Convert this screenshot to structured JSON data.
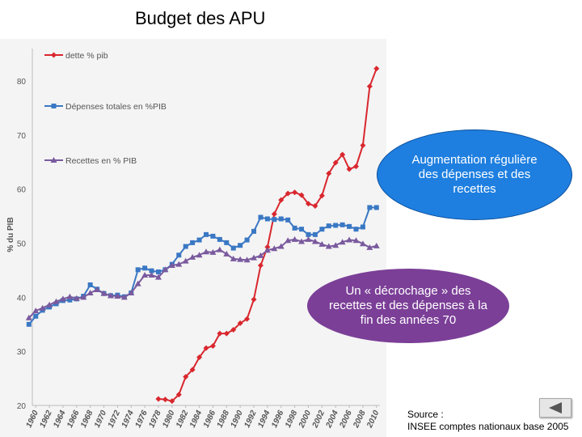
{
  "slide_title": "Budget des APU",
  "chart_data": {
    "type": "line",
    "title": "",
    "ylabel": "% du PIB",
    "xlabel": "",
    "ylim": [
      20,
      86
    ],
    "yticks": [
      20,
      30,
      40,
      50,
      60,
      70,
      80
    ],
    "xlim": [
      1959.5,
      2010.5
    ],
    "x_tick_labels": [
      "1960",
      "1962",
      "1964",
      "1966",
      "1968",
      "1970",
      "1972",
      "1974",
      "1976",
      "1978",
      "1980",
      "1982",
      "1984",
      "1986",
      "1988",
      "1990",
      "1992",
      "1994",
      "1996",
      "1998",
      "2000",
      "2002",
      "2004",
      "2006",
      "2008",
      "2010"
    ],
    "legend": [
      "dette % pib",
      "Dépenses totales en %PIB",
      "Recettes en % PIB"
    ],
    "series": [
      {
        "name": "dette % pib",
        "color": "#d9272e",
        "marker": "diamond",
        "x": [
          1978,
          1979,
          1980,
          1981,
          1982,
          1983,
          1984,
          1985,
          1986,
          1987,
          1988,
          1989,
          1990,
          1991,
          1992,
          1993,
          1994,
          1995,
          1996,
          1997,
          1998,
          1999,
          2000,
          2001,
          2002,
          2003,
          2004,
          2005,
          2006,
          2007,
          2008,
          2009,
          2010
        ],
        "y": [
          21.2,
          21.1,
          20.8,
          22.0,
          25.3,
          26.6,
          28.9,
          30.6,
          31.0,
          33.3,
          33.3,
          34.0,
          35.2,
          36.0,
          39.6,
          45.9,
          49.3,
          55.4,
          58.0,
          59.2,
          59.4,
          58.9,
          57.3,
          56.9,
          58.8,
          62.9,
          64.9,
          66.4,
          63.7,
          64.2,
          68.1,
          79.0,
          82.3
        ]
      },
      {
        "name": "Dépenses totales en %PIB",
        "color": "#3a78c4",
        "marker": "square",
        "x": [
          1959,
          1960,
          1961,
          1962,
          1963,
          1964,
          1965,
          1966,
          1967,
          1968,
          1969,
          1970,
          1971,
          1972,
          1973,
          1974,
          1975,
          1976,
          1977,
          1978,
          1979,
          1980,
          1981,
          1982,
          1983,
          1984,
          1985,
          1986,
          1987,
          1988,
          1989,
          1990,
          1991,
          1992,
          1993,
          1994,
          1995,
          1996,
          1997,
          1998,
          1999,
          2000,
          2001,
          2002,
          2003,
          2004,
          2005,
          2006,
          2007,
          2008,
          2009,
          2010
        ],
        "y": [
          35.0,
          36.5,
          37.6,
          38.2,
          38.8,
          39.4,
          39.5,
          39.7,
          40.2,
          42.3,
          41.5,
          40.7,
          40.3,
          40.4,
          40.1,
          40.8,
          45.1,
          45.4,
          44.9,
          44.7,
          45.1,
          46.1,
          47.8,
          49.4,
          50.1,
          50.6,
          51.6,
          51.3,
          50.7,
          50.1,
          49.1,
          49.6,
          50.6,
          52.2,
          54.8,
          54.5,
          54.4,
          54.5,
          54.3,
          52.8,
          52.6,
          51.6,
          51.6,
          52.6,
          53.2,
          53.3,
          53.4,
          53.1,
          52.6,
          53.0,
          56.6,
          56.6
        ]
      },
      {
        "name": "Recettes en % PIB",
        "color": "#7a5a9e",
        "marker": "triangle",
        "x": [
          1959,
          1960,
          1961,
          1962,
          1963,
          1964,
          1965,
          1966,
          1967,
          1968,
          1969,
          1970,
          1971,
          1972,
          1973,
          1974,
          1975,
          1976,
          1977,
          1978,
          1979,
          1980,
          1981,
          1982,
          1983,
          1984,
          1985,
          1986,
          1987,
          1988,
          1989,
          1990,
          1991,
          1992,
          1993,
          1994,
          1995,
          1996,
          1997,
          1998,
          1999,
          2000,
          2001,
          2002,
          2003,
          2004,
          2005,
          2006,
          2007,
          2008,
          2009,
          2010
        ],
        "y": [
          36.2,
          37.5,
          38.0,
          38.6,
          39.2,
          39.7,
          40.1,
          39.8,
          40.0,
          40.8,
          41.4,
          40.7,
          40.3,
          40.2,
          40.0,
          40.8,
          42.5,
          44.1,
          44.1,
          43.7,
          45.1,
          45.9,
          46.1,
          46.7,
          47.4,
          47.8,
          48.4,
          48.3,
          48.8,
          48.0,
          47.1,
          47.0,
          46.9,
          47.3,
          47.7,
          48.7,
          49.0,
          49.4,
          50.5,
          50.7,
          50.3,
          50.7,
          50.3,
          49.8,
          49.4,
          49.6,
          50.2,
          50.6,
          50.5,
          49.9,
          49.2,
          49.5
        ]
      }
    ]
  },
  "annotations": {
    "oval_blue": "Augmentation régulière des dépenses et des recettes",
    "oval_purple": "Un « décrochage » des recettes et des dépenses à la fin des années 70"
  },
  "source": {
    "line1": "Source :",
    "line2": "INSEE comptes nationaux base 2005"
  }
}
